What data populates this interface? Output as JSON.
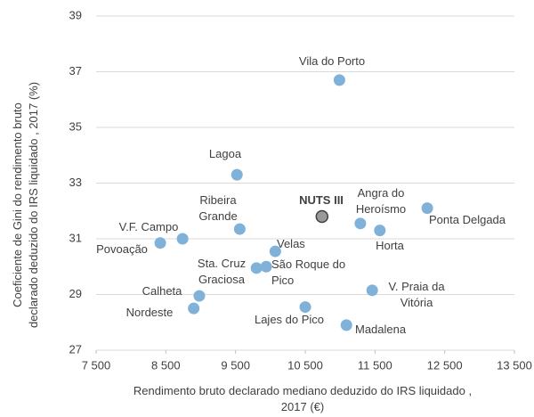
{
  "chart_data": {
    "type": "scatter",
    "x_label": [
      "Rendimento bruto declarado mediano deduzido do IRS liquidado ,",
      "2017 (€)"
    ],
    "y_label": [
      "Coeficiente de Gini do rendimento bruto",
      "declarado deduzido do IRS liquidado , 2017 (%)"
    ],
    "labels": [
      [
        "Vila do Porto"
      ],
      [
        "Lagoa"
      ],
      [
        "Ribeira",
        "Grande"
      ],
      [
        "NUTS III"
      ],
      [
        "Angra do",
        "Heroísmo"
      ],
      [
        "Ponta Delgada"
      ],
      [
        "Horta"
      ],
      [
        "V.F. Campo"
      ],
      [
        "Povoação"
      ],
      [
        "Velas"
      ],
      [
        "Sta. Cruz",
        "Graciosa"
      ],
      [
        "São Roque do",
        "Pico"
      ],
      [
        "Calheta"
      ],
      [
        "Nordeste"
      ],
      [
        "V. Praia da",
        "Vitória"
      ],
      [
        "Lajes do Pico"
      ],
      [
        "Madalena"
      ]
    ],
    "x": [
      10990,
      9520,
      9560,
      10740,
      11290,
      12250,
      11570,
      8740,
      8420,
      10070,
      9800,
      9940,
      8980,
      8900,
      11460,
      10500,
      11090
    ],
    "values": [
      36.7,
      33.3,
      31.35,
      31.8,
      31.55,
      32.1,
      31.3,
      31.0,
      30.85,
      30.55,
      29.95,
      30.0,
      28.95,
      28.5,
      29.15,
      28.55,
      27.9
    ],
    "color": "#7fb1d9",
    "point_colors": [
      "#7fb1d9",
      "#7fb1d9",
      "#7fb1d9",
      "#999999",
      "#7fb1d9",
      "#7fb1d9",
      "#7fb1d9",
      "#7fb1d9",
      "#7fb1d9",
      "#7fb1d9",
      "#7fb1d9",
      "#7fb1d9",
      "#7fb1d9",
      "#7fb1d9",
      "#7fb1d9",
      "#7fb1d9",
      "#7fb1d9"
    ],
    "xlim": [
      7500,
      13500
    ],
    "xticks": [
      {
        "value": 7500,
        "label": "7 500"
      },
      {
        "value": 8500,
        "label": "8 500"
      },
      {
        "value": 9500,
        "label": "9 500"
      },
      {
        "value": 10500,
        "label": "10 500"
      },
      {
        "value": 11500,
        "label": "11 500"
      },
      {
        "value": 12500,
        "label": "12 500"
      },
      {
        "value": 13500,
        "label": "13 500"
      }
    ],
    "ylim": [
      27,
      39
    ],
    "yticks": [
      27,
      29,
      31,
      33,
      35,
      37,
      39
    ],
    "grid": true
  }
}
